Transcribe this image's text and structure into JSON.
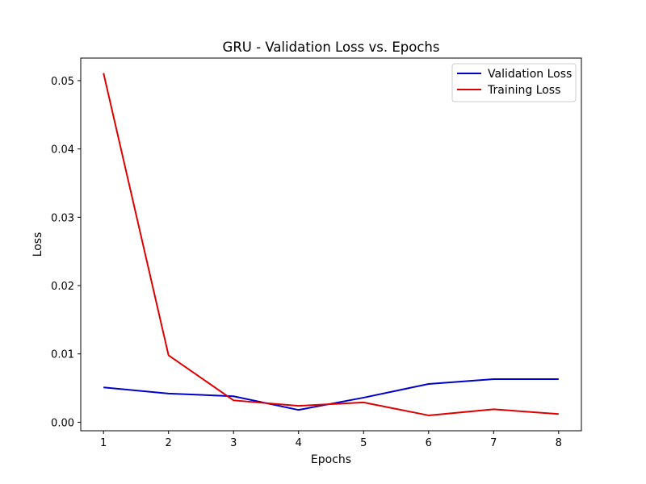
{
  "chart_data": {
    "type": "line",
    "title": "GRU - Validation Loss vs. Epochs",
    "xlabel": "Epochs",
    "ylabel": "Loss",
    "x": [
      1,
      2,
      3,
      4,
      5,
      6,
      7,
      8
    ],
    "xlim": [
      0.65,
      8.35
    ],
    "ylim": [
      -0.00125,
      0.0533
    ],
    "xticks": [
      1,
      2,
      3,
      4,
      5,
      6,
      7,
      8
    ],
    "yticks": [
      0.0,
      0.01,
      0.02,
      0.03,
      0.04,
      0.05
    ],
    "ytick_labels": [
      "0.00",
      "0.01",
      "0.02",
      "0.03",
      "0.04",
      "0.05"
    ],
    "grid": false,
    "legend_position": "top-right",
    "series": [
      {
        "name": "Validation Loss",
        "color": "#0000cc",
        "values": [
          0.0051,
          0.0042,
          0.0038,
          0.0018,
          0.0036,
          0.0056,
          0.0063,
          0.0063
        ]
      },
      {
        "name": "Training Loss",
        "color": "#dd0000",
        "values": [
          0.0511,
          0.0098,
          0.0032,
          0.0024,
          0.0029,
          0.001,
          0.0019,
          0.0012
        ]
      }
    ]
  }
}
